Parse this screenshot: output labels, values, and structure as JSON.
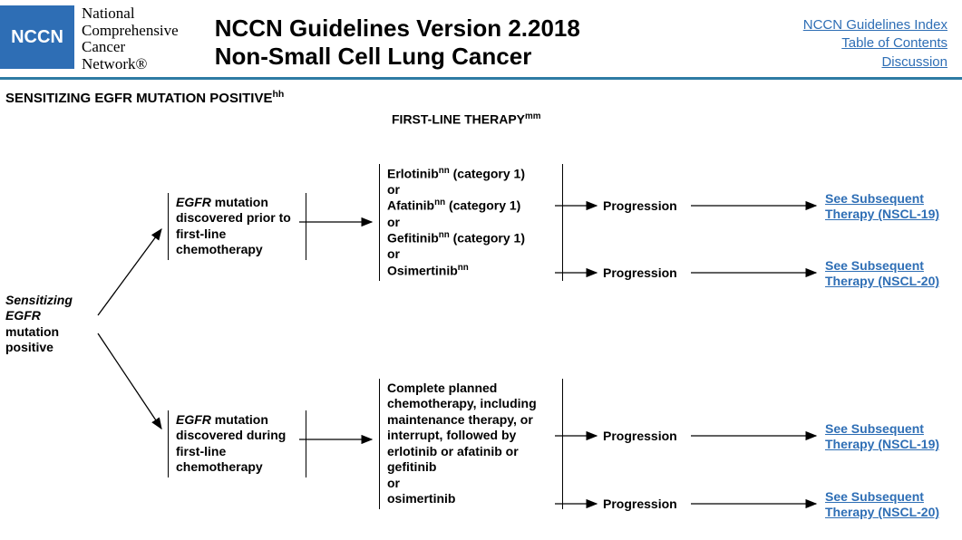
{
  "header": {
    "logo_text": "NCCN",
    "org_name_lines": [
      "National",
      "Comprehensive",
      "Cancer",
      "Network®"
    ],
    "title_line1": "NCCN Guidelines Version 2.2018",
    "title_line2": "Non-Small Cell Lung Cancer",
    "links": {
      "index": "NCCN Guidelines Index",
      "toc": "Table of Contents",
      "discussion": "Discussion"
    },
    "colors": {
      "accent": "#2e7ba4",
      "logo_bg": "#2e6eb5",
      "link_color": "#2e6eb5"
    }
  },
  "section_heading": {
    "text": "SENSITIZING EGFR MUTATION POSITIVE",
    "sup": "hh"
  },
  "subheading": {
    "text": "FIRST-LINE THERAPY",
    "sup": "mm"
  },
  "flowchart": {
    "root": {
      "line1_italic": "Sensitizing",
      "line2_italic": "EGFR",
      "line3": "mutation",
      "line4": "positive"
    },
    "branch_prior": {
      "label_italic": "EGFR",
      "label_rest": " mutation discovered prior to first-line chemotherapy",
      "therapy_html": "Erlotinib<sup>nn</sup> (category 1)<br>or<br>Afatinib<sup>nn</sup> (category 1)<br>or<br>Gefitinib<sup>nn</sup> (category 1)<br>or<br>Osimertinib<sup>nn</sup>",
      "out1": {
        "label": "Progression",
        "link_text": "See Subsequent Therapy (NSCL-19)"
      },
      "out2": {
        "label": "Progression",
        "link_text": "See Subsequent Therapy (NSCL-20)"
      }
    },
    "branch_during": {
      "label_italic": "EGFR",
      "label_rest": " mutation discovered during first-line chemotherapy",
      "therapy_html": "Complete planned chemotherapy, including maintenance therapy, or interrupt, followed by erlotinib or afatinib or gefitinib<br>or<br>osimertinib",
      "out1": {
        "label": "Progression",
        "link_text": "See Subsequent Therapy (NSCL-19)"
      },
      "out2": {
        "label": "Progression",
        "link_text": "See Subsequent Therapy (NSCL-20)"
      }
    },
    "style": {
      "arrow_color": "#000000",
      "arrow_width": 1.3,
      "node_font_size": 14,
      "node_font_weight": "bold"
    }
  }
}
